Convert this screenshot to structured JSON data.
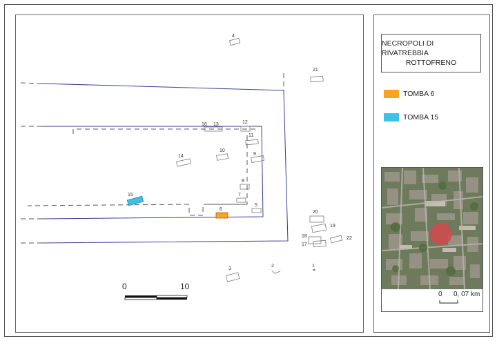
{
  "title": {
    "line1": "NECROPOLI DI RIVATREBBIA",
    "line2": "ROTTOFRENO"
  },
  "legend": [
    {
      "label": "TOMBA 6",
      "color": "#f4a623",
      "icon": "orange-swatch-icon"
    },
    {
      "label": "TOMBA 15",
      "color": "#3fc1e6",
      "icon": "cyan-swatch-icon"
    }
  ],
  "tomb_labels": [
    "1",
    "2",
    "3",
    "4",
    "5",
    "6",
    "7",
    "8",
    "9",
    "10",
    "11",
    "12",
    "13",
    "14",
    "15",
    "16",
    "17",
    "18",
    "19",
    "20",
    "21",
    "22"
  ],
  "scale_bar": {
    "start": "0",
    "end": "10"
  },
  "inset": {
    "scale_start": "0",
    "scale_end": "0, 07 km"
  },
  "colors": {
    "wall_lines": "#3b3b9b",
    "highlight_tomb_6": "#f4a623",
    "highlight_tomb_15": "#3fc1e6"
  }
}
